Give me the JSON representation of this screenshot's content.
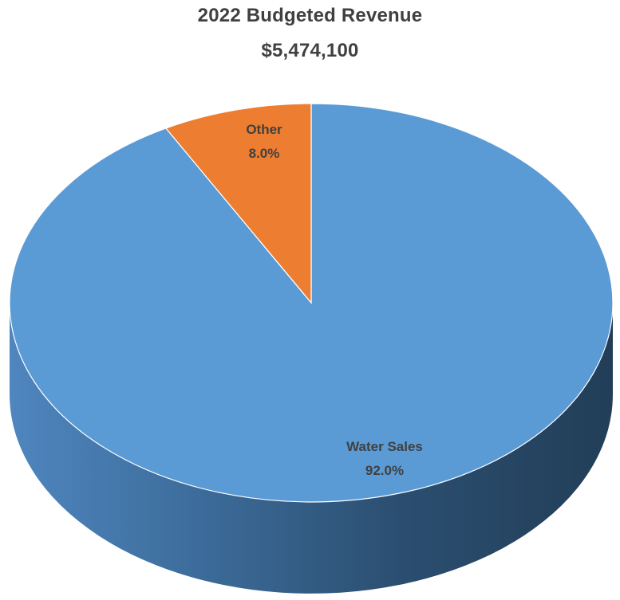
{
  "chart_data": {
    "type": "pie",
    "title": "2022 Budgeted Revenue",
    "subtitle": "$5,474,100",
    "three_d": true,
    "legend": "none",
    "slices": [
      {
        "label": "Water Sales",
        "percent_label": "92.0%",
        "value": 92.0,
        "color": "#5b9bd5"
      },
      {
        "label": "Other",
        "percent_label": "8.0%",
        "value": 8.0,
        "color": "#ed7d31"
      }
    ]
  }
}
